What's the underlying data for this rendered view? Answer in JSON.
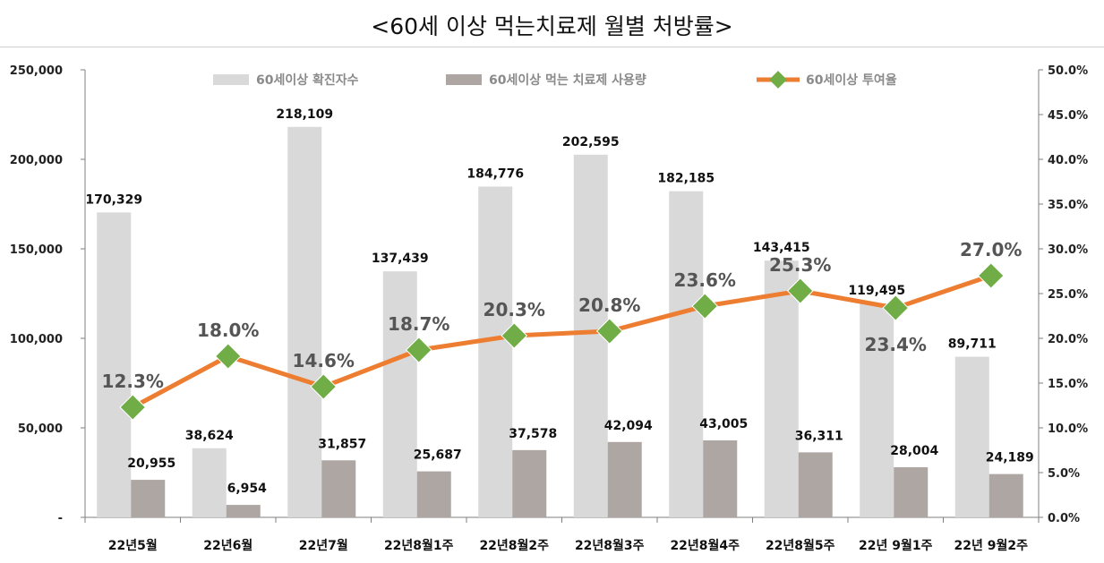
{
  "chart_data": {
    "type": "bar",
    "title": "<60세 이상 먹는치료제 월별 처방률>",
    "categories": [
      "22년5월",
      "22년6월",
      "22년7월",
      "22년8월1주",
      "22년8월2주",
      "22년8월3주",
      "22년8월4주",
      "22년8월5주",
      "22년 9월1주",
      "22년 9월2주"
    ],
    "series": [
      {
        "name": "60세이상 확진자수",
        "type": "bar",
        "axis": "left",
        "color": "#d9d9d9",
        "values": [
          170329,
          38624,
          218109,
          137439,
          184776,
          202595,
          182185,
          143415,
          119495,
          89711
        ],
        "labels": [
          "170,329",
          "38,624",
          "218,109",
          "137,439",
          "184,776",
          "202,595",
          "182,185",
          "143,415",
          "119,495",
          "89,711"
        ]
      },
      {
        "name": "60세이상 먹는 치료제 사용량",
        "type": "bar",
        "axis": "left",
        "color": "#ada6a3",
        "values": [
          20955,
          6954,
          31857,
          25687,
          37578,
          42094,
          43005,
          36311,
          28004,
          24189
        ],
        "labels": [
          "20,955",
          "6,954",
          "31,857",
          "25,687",
          "37,578",
          "42,094",
          "43,005",
          "36,311",
          "28,004",
          "24,189"
        ]
      },
      {
        "name": "60세이상 투여율",
        "type": "line",
        "axis": "right",
        "color": "#ed7d31",
        "marker_color": "#70ad47",
        "values": [
          12.3,
          18.0,
          14.6,
          18.7,
          20.3,
          20.8,
          23.6,
          25.3,
          23.4,
          27.0
        ],
        "labels": [
          "12.3%",
          "18.0%",
          "14.6%",
          "18.7%",
          "20.3%",
          "20.8%",
          "23.6%",
          "25.3%",
          "23.4%",
          "27.0%"
        ]
      }
    ],
    "y_left": {
      "range": [
        0,
        250000
      ],
      "ticks": [
        "-",
        "50,000",
        "100,000",
        "150,000",
        "200,000",
        "250,000"
      ]
    },
    "y_right": {
      "range": [
        0,
        50
      ],
      "ticks": [
        "0.0%",
        "5.0%",
        "10.0%",
        "15.0%",
        "20.0%",
        "25.0%",
        "30.0%",
        "35.0%",
        "40.0%",
        "45.0%",
        "50.0%"
      ]
    },
    "grid": false,
    "legend": "top"
  }
}
